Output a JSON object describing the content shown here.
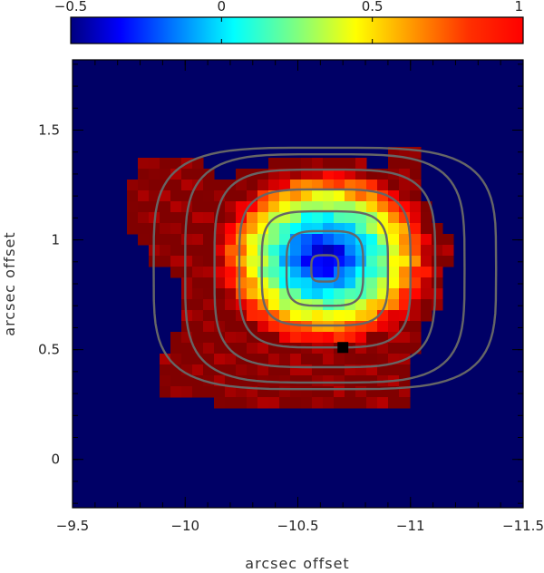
{
  "chart_data": {
    "type": "heatmap",
    "xlabel": "arcsec offset",
    "ylabel": "arcsec offset",
    "xlim": [
      -9.5,
      -11.5
    ],
    "ylim": [
      -0.22,
      1.82
    ],
    "x_ticks": [
      {
        "value": -9.5,
        "label": "−9.5"
      },
      {
        "value": -10,
        "label": "−10"
      },
      {
        "value": -10.5,
        "label": "−10.5"
      },
      {
        "value": -11,
        "label": "−11"
      },
      {
        "value": -11.5,
        "label": "−11.5"
      }
    ],
    "y_ticks": [
      {
        "value": 0,
        "label": "0"
      },
      {
        "value": 0.5,
        "label": "0.5"
      },
      {
        "value": 1,
        "label": "1"
      },
      {
        "value": 1.5,
        "label": "1.5"
      }
    ],
    "colorbar": {
      "range": [
        -0.5,
        1
      ],
      "colormap": "jet",
      "ticks": [
        {
          "value": -0.5,
          "label": "−0.5"
        },
        {
          "value": 0,
          "label": "0"
        },
        {
          "value": 0.5,
          "label": "0.5"
        },
        {
          "value": 1,
          "label": "1"
        }
      ]
    },
    "background_color": "#000066",
    "contour_color": "#666666",
    "map": {
      "region_outline": [
        [
          -9.75,
          1.12
        ],
        [
          -9.75,
          1.27
        ],
        [
          -9.8,
          1.35
        ],
        [
          -10.05,
          1.37
        ],
        [
          -10.15,
          1.27
        ],
        [
          -10.45,
          1.37
        ],
        [
          -10.75,
          1.37
        ],
        [
          -10.88,
          1.32
        ],
        [
          -10.9,
          1.43
        ],
        [
          -11.05,
          1.43
        ],
        [
          -11.06,
          1.2
        ],
        [
          -11.17,
          1.0
        ],
        [
          -11.17,
          0.88
        ],
        [
          -11.12,
          0.7
        ],
        [
          -11.06,
          0.6
        ],
        [
          -11.0,
          0.38
        ],
        [
          -11.02,
          0.24
        ],
        [
          -10.8,
          0.22
        ],
        [
          -10.55,
          0.23
        ],
        [
          -10.25,
          0.23
        ],
        [
          -10.08,
          0.27
        ],
        [
          -9.91,
          0.3
        ],
        [
          -9.9,
          0.47
        ],
        [
          -9.98,
          0.6
        ],
        [
          -9.98,
          0.74
        ],
        [
          -9.95,
          0.87
        ],
        [
          -9.86,
          0.9
        ],
        [
          -9.78,
          1.02
        ],
        [
          -9.72,
          1.1
        ]
      ],
      "value_model": {
        "description": "pixel value as a function of offset from the minimum",
        "min_center": [
          -10.62,
          0.92
        ],
        "min_value": -0.45,
        "radius_x": 0.5,
        "radius_y": 0.42,
        "max_value": 1.0
      }
    },
    "contours": {
      "center": [
        -10.62,
        0.87
      ],
      "levels": [
        {
          "rx": 0.06,
          "ry": 0.06
        },
        {
          "rx": 0.17,
          "ry": 0.17
        },
        {
          "rx": 0.28,
          "ry": 0.26
        },
        {
          "rx": 0.38,
          "ry": 0.36
        },
        {
          "rx": 0.49,
          "ry": 0.45
        },
        {
          "rx": 0.62,
          "ry": 0.52
        },
        {
          "rx": 0.76,
          "ry": 0.55
        }
      ]
    },
    "marker": {
      "x": -10.7,
      "y": 0.51,
      "shape": "square",
      "color": "#000000"
    }
  }
}
